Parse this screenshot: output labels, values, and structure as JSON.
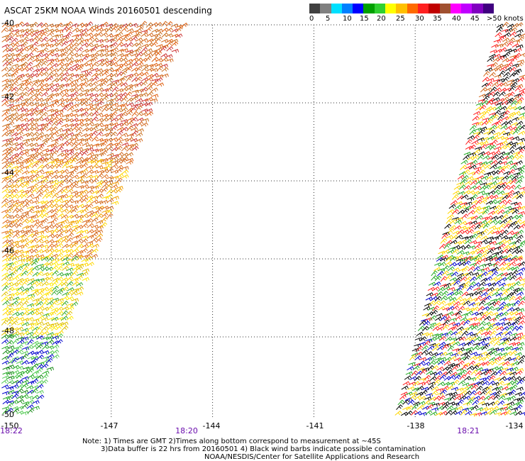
{
  "title": "ASCAT 25KM NOAA Winds 20160501 descending",
  "colorbar": {
    "colors": [
      "#404040",
      "#808080",
      "#00e0ff",
      "#0080ff",
      "#0000ff",
      "#00a000",
      "#30d030",
      "#ffff00",
      "#ffc000",
      "#ff6a00",
      "#ff2020",
      "#c00000",
      "#a05030",
      "#ff00ff",
      "#c000ff",
      "#8000c0",
      "#400080"
    ],
    "labels": [
      "0",
      "5",
      "10",
      "15",
      "20",
      "25",
      "30",
      "35",
      "40",
      "45",
      ">50 knots"
    ]
  },
  "x_axis": {
    "labels": [
      "-150",
      "-147",
      "-144",
      "-141",
      "-138",
      "-134"
    ]
  },
  "y_axis": {
    "labels": [
      "-40",
      "-42",
      "-44",
      "-46",
      "-48",
      "-50"
    ]
  },
  "times": [
    "18:22",
    "18:20",
    "18:21"
  ],
  "notes": [
    "Note: 1) Times are GMT 2)Times along bottom correspond to measurement at ~45S",
    "3)Data buffer is 22 hrs from 20160501 4) Black wind barbs indicate possible contamination",
    "NOAA/NESDIS/Center for Satellite Applications and Research"
  ],
  "swaths": [
    {
      "name": "west-swath",
      "bands": [
        {
          "from_lat": -40,
          "to_lat": -43.5,
          "colors": [
            "#d2691e",
            "#e06010",
            "#cc3333",
            "#c87020"
          ]
        },
        {
          "from_lat": -43.5,
          "to_lat": -46,
          "colors": [
            "#e07020",
            "#f0a000",
            "#ffd700",
            "#d2691e"
          ]
        },
        {
          "from_lat": -46,
          "to_lat": -48,
          "colors": [
            "#ffd700",
            "#ffea00",
            "#e0c000",
            "#33aa33"
          ]
        },
        {
          "from_lat": -48,
          "to_lat": -50,
          "colors": [
            "#22aa22",
            "#55cc55",
            "#118811",
            "#0000cc"
          ]
        }
      ]
    },
    {
      "name": "east-swath",
      "bands": [
        {
          "from_lat": -40,
          "to_lat": -42,
          "colors": [
            "#ff2020",
            "#d2691e",
            "#000000"
          ]
        },
        {
          "from_lat": -42,
          "to_lat": -46,
          "colors": [
            "#000000",
            "#ffd700",
            "#22aa22",
            "#ff2020"
          ]
        },
        {
          "from_lat": -46,
          "to_lat": -50,
          "colors": [
            "#ffd700",
            "#22aa22",
            "#000000",
            "#ff2020",
            "#0000cc"
          ]
        }
      ]
    }
  ]
}
